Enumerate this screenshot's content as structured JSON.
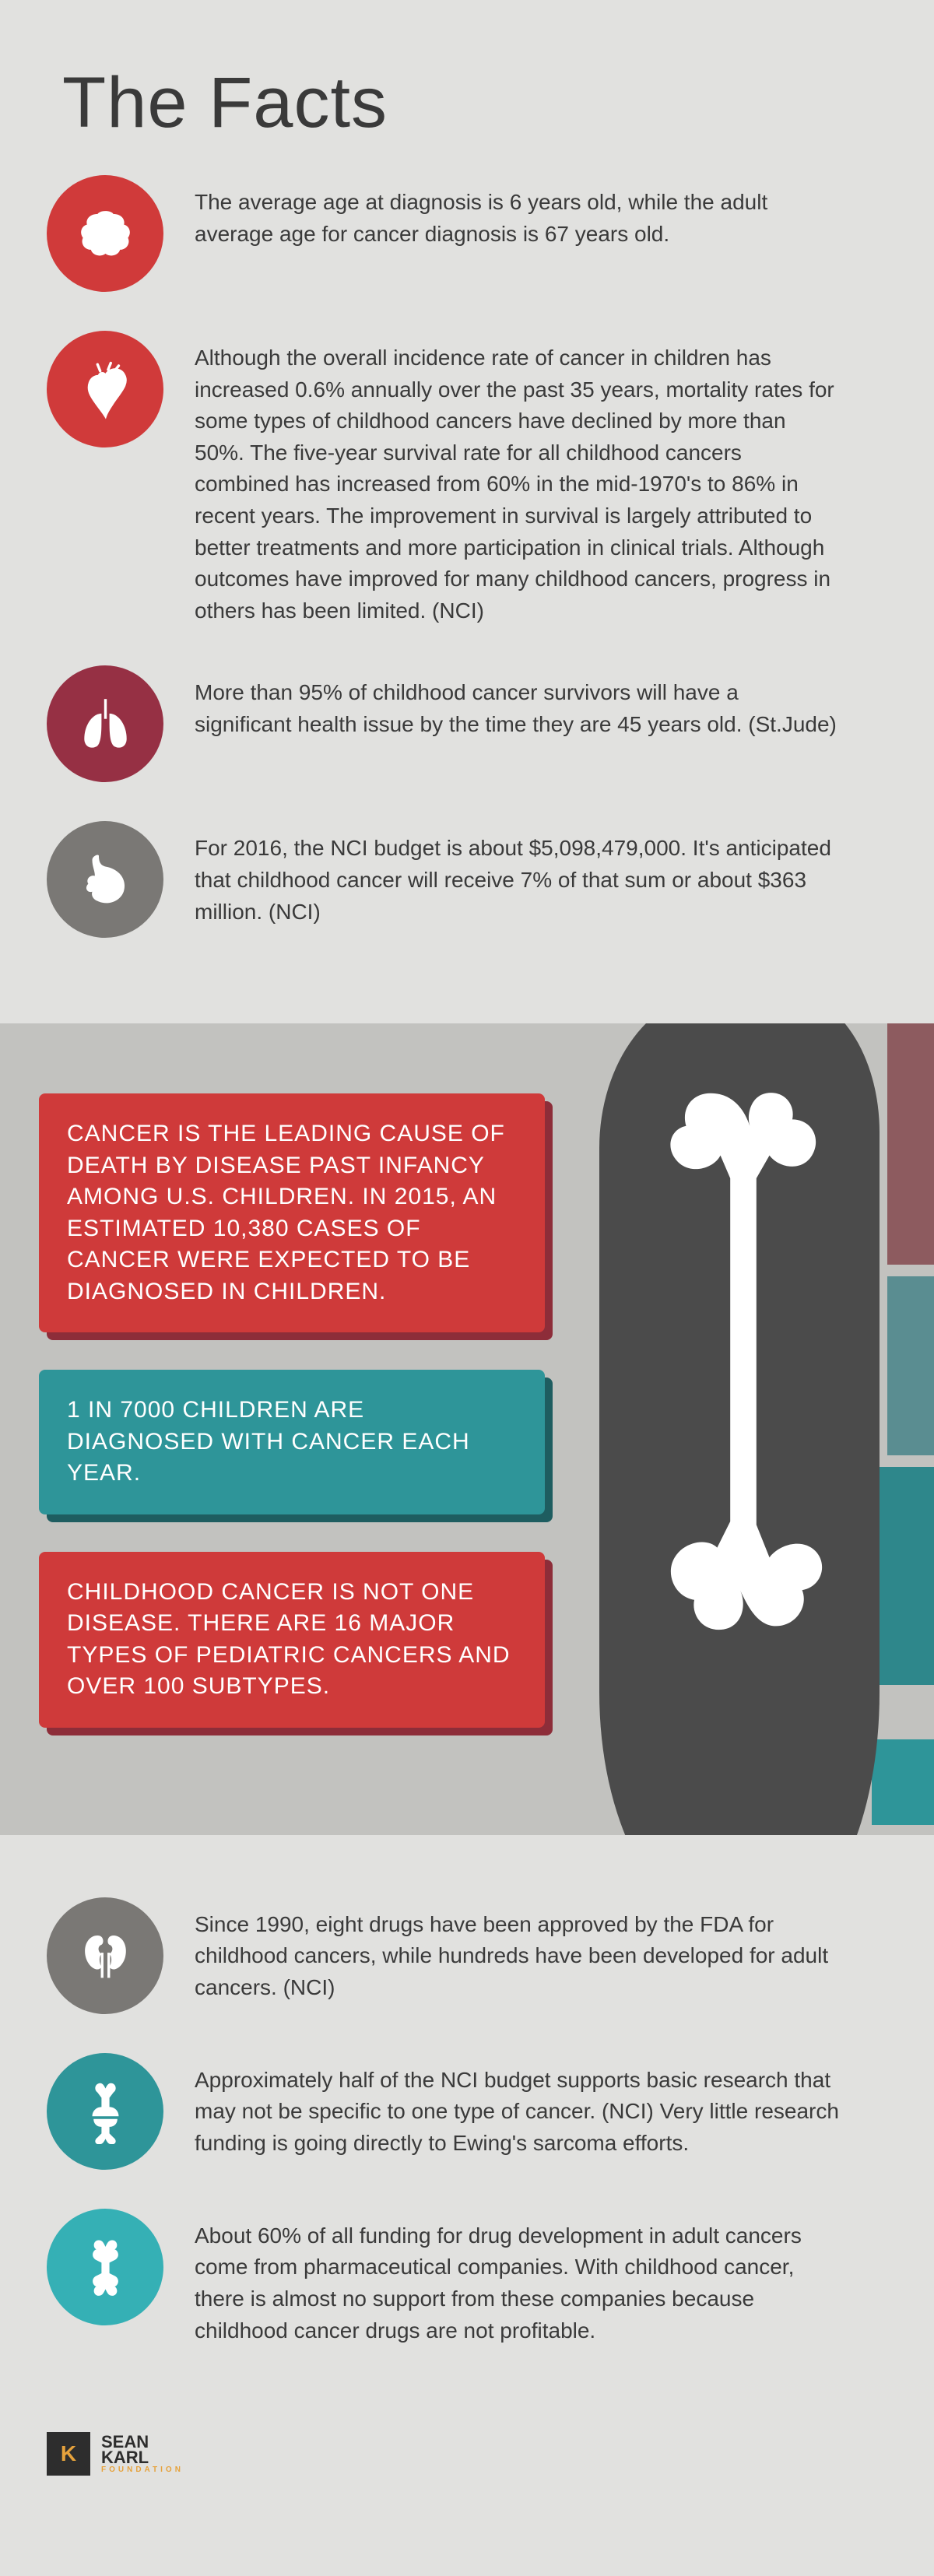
{
  "header": {
    "title": "The Facts"
  },
  "colors": {
    "bg": "#e1e1df",
    "midbg": "#c2c2bf",
    "red": "#d03a3a",
    "darkred": "#963044",
    "gray": "#7a7875",
    "teal": "#2e9599",
    "tealBright": "#35b0b5",
    "legDark": "#4b4b4b",
    "boneWhite": "#ffffff"
  },
  "factsTop": [
    {
      "icon": "brain",
      "iconColor": "red",
      "text": "The average age at diagnosis is 6 years old, while the adult average age for cancer diagnosis is 67 years old."
    },
    {
      "icon": "heart",
      "iconColor": "red",
      "text": "Although the overall incidence rate of cancer in children has increased 0.6% annually over the past 35 years, mortality rates for some types of childhood cancers have declined by more than 50%. The five-year survival rate for all childhood cancers combined has increased from 60% in the mid-1970's to 86% in recent years. The improvement in survival is largely attributed to better treatments and more participation in clinical trials. Although outcomes have improved for many childhood cancers, progress in others has been limited. (NCI)"
    },
    {
      "icon": "lungs",
      "iconColor": "darkred",
      "text": "More than 95% of childhood cancer survivors will have a significant health issue by the time they are 45 years old. (St.Jude)"
    },
    {
      "icon": "stomach",
      "iconColor": "gray",
      "text": "For 2016, the NCI budget is about $5,098,479,000. It's anticipated that childhood cancer will receive 7% of that sum or about $363 million. (NCI)"
    }
  ],
  "callouts": [
    {
      "class": "red",
      "text": "Cancer is the leading cause of death by disease past infancy among U.S. children. In 2015, an estimated 10,380 cases of cancer were expected to be diagnosed in children."
    },
    {
      "class": "teal",
      "text": "1 in 7000 children are diagnosed with cancer each year."
    },
    {
      "class": "red2",
      "text": "Childhood cancer is not one disease. There are 16 major types of pediatric cancers and over 100 subtypes."
    }
  ],
  "factsBottom": [
    {
      "icon": "kidneys",
      "iconColor": "gray",
      "text": "Since 1990, eight drugs have been approved by the FDA for childhood cancers, while hundreds have been developed for adult cancers. (NCI)"
    },
    {
      "icon": "joint",
      "iconColor": "teal",
      "text": "Approximately half of the NCI budget supports basic research that may not be specific to one type of cancer. (NCI) Very little research funding is going directly to Ewing's sarcoma efforts."
    },
    {
      "icon": "bone",
      "iconColor": "tealBright",
      "text": "About 60% of all funding for drug development in adult cancers come from pharmaceutical companies. With childhood cancer, there is almost no support from these companies because childhood cancer drugs are not profitable."
    }
  ],
  "footer": {
    "line1": "SEAN",
    "line2": "KARL",
    "sub": "FOUNDATION",
    "mark": "K"
  }
}
